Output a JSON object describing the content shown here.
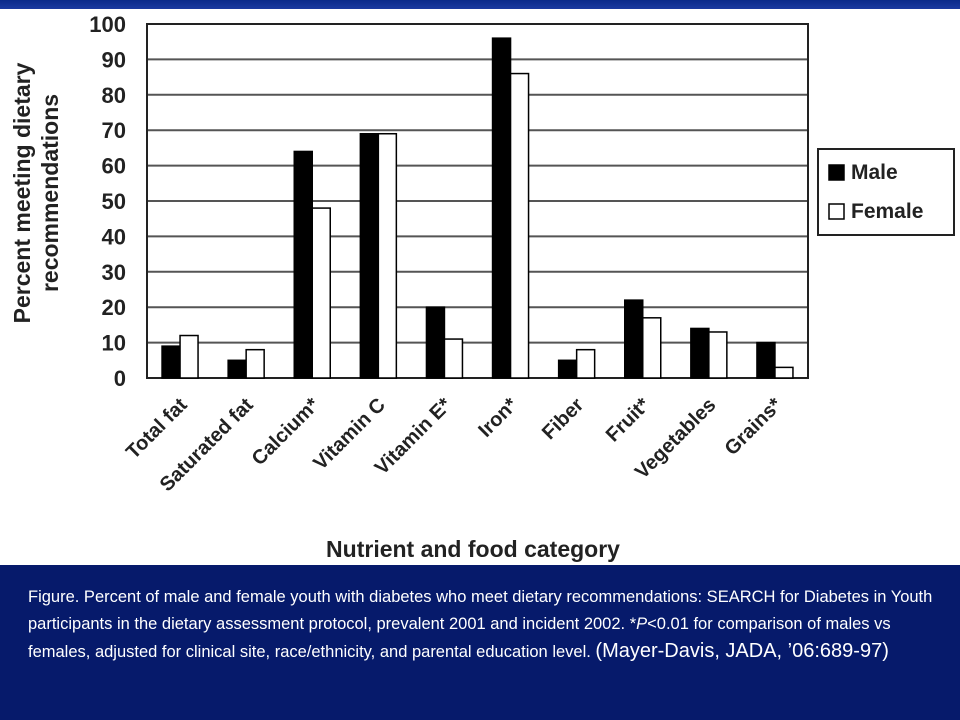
{
  "chart_data": {
    "type": "bar",
    "xlabel": "Nutrient and food category",
    "ylabel": "Percent meeting dietary recommendations",
    "ylim": [
      0,
      100
    ],
    "yticks": [
      0,
      10,
      20,
      30,
      40,
      50,
      60,
      70,
      80,
      90,
      100
    ],
    "grid": true,
    "legend_position": "right",
    "categories": [
      "Total fat",
      "Saturated fat",
      "Calcium*",
      "Vitamin C",
      "Vitamin E*",
      "Iron*",
      "Fiber",
      "Fruit*",
      "Vegetables",
      "Grains*"
    ],
    "series": [
      {
        "name": "Male",
        "color": "#000000",
        "values": [
          9,
          5,
          64,
          69,
          20,
          96,
          5,
          22,
          14,
          10
        ]
      },
      {
        "name": "Female",
        "color": "#ffffff",
        "values": [
          12,
          8,
          48,
          69,
          11,
          86,
          8,
          17,
          13,
          3
        ]
      }
    ]
  },
  "caption": {
    "part1": "Figure. Percent of male and female youth with diabetes who meet dietary recommendations: SEARCH for Diabetes in Youth participants in the dietary assessment protocol, prevalent 2001 and incident 2002. *",
    "p_italic": "P",
    "part2": "<0.01 for comparison of males vs females, adjusted for clinical site, race/ethnicity, and parental education level. ",
    "citation": "(Mayer-Davis, JADA, ’06:689-97)"
  },
  "colors": {
    "background": "#061a6b",
    "panel": "#ffffff",
    "grid": "#555555"
  }
}
